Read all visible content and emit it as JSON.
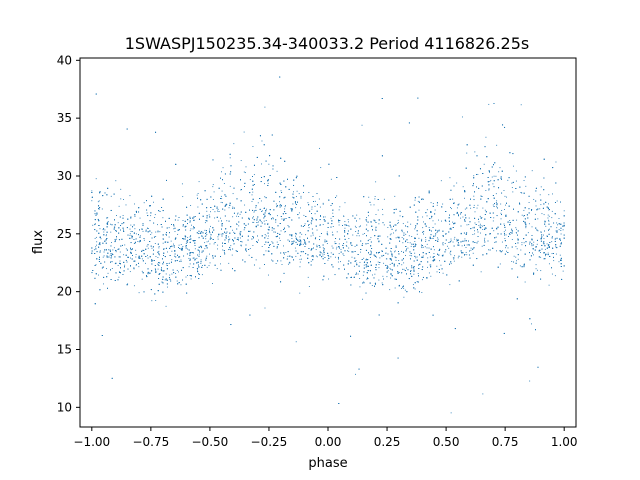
{
  "chart_data": {
    "type": "scatter",
    "title": "1SWASPJ150235.34-340033.2 Period 4116826.25s",
    "xlabel": "phase",
    "ylabel": "flux",
    "xlim": [
      -1.05,
      1.05
    ],
    "ylim": [
      8.3,
      40.2
    ],
    "xticks": [
      -1.0,
      -0.75,
      -0.5,
      -0.25,
      0.0,
      0.25,
      0.5,
      0.75,
      1.0
    ],
    "xtick_labels": [
      "−1.00",
      "−0.75",
      "−0.50",
      "−0.25",
      "0.00",
      "0.25",
      "0.50",
      "0.75",
      "1.00"
    ],
    "yticks": [
      10,
      15,
      20,
      25,
      30,
      35,
      40
    ],
    "ytick_labels": [
      "10",
      "15",
      "20",
      "25",
      "30",
      "35",
      "40"
    ],
    "grid": false,
    "marker_color": "#1f77b4",
    "series": [
      {
        "phase": [
          -1.0,
          -0.95,
          -0.9,
          -0.85,
          -0.8,
          -0.75,
          -0.7,
          -0.65,
          -0.6,
          -0.55,
          -0.5,
          -0.45,
          -0.4,
          -0.35,
          -0.3,
          -0.25,
          -0.2,
          -0.15,
          -0.1,
          -0.05,
          0.0,
          0.05,
          0.1,
          0.15,
          0.2,
          0.25,
          0.3,
          0.35,
          0.4,
          0.45,
          0.5,
          0.55,
          0.6,
          0.65,
          0.7,
          0.75,
          0.8,
          0.85,
          0.9,
          0.95,
          1.0
        ],
        "flux_center": [
          25.0,
          24.5,
          24.0,
          24.2,
          24.5,
          23.5,
          23.0,
          23.5,
          24.0,
          24.0,
          24.5,
          25.0,
          25.5,
          26.0,
          26.5,
          26.0,
          25.5,
          25.0,
          24.5,
          24.5,
          24.5,
          24.5,
          24.2,
          24.0,
          23.5,
          23.0,
          23.0,
          23.5,
          24.0,
          24.0,
          24.5,
          25.0,
          25.5,
          26.0,
          26.5,
          26.0,
          25.5,
          25.0,
          24.5,
          24.5,
          25.0
        ],
        "flux_low": [
          21.0,
          20.5,
          20.0,
          20.0,
          20.5,
          19.5,
          19.0,
          19.5,
          20.0,
          20.5,
          21.0,
          21.5,
          22.0,
          22.0,
          22.0,
          22.0,
          21.5,
          21.5,
          21.0,
          21.0,
          21.0,
          21.0,
          20.5,
          20.0,
          20.0,
          19.5,
          19.0,
          19.5,
          20.0,
          20.5,
          21.0,
          21.5,
          22.0,
          22.0,
          22.0,
          22.0,
          21.5,
          21.5,
          21.0,
          21.0,
          21.0
        ],
        "flux_high": [
          30.0,
          29.0,
          28.5,
          28.5,
          29.0,
          28.0,
          28.0,
          28.5,
          29.0,
          29.0,
          30.0,
          31.0,
          32.5,
          33.5,
          34.0,
          33.0,
          32.0,
          31.0,
          30.0,
          29.5,
          29.5,
          29.5,
          29.0,
          28.5,
          28.5,
          28.0,
          28.0,
          28.5,
          29.0,
          29.5,
          30.0,
          31.0,
          32.5,
          33.5,
          34.0,
          33.0,
          32.0,
          31.0,
          30.0,
          29.5,
          30.0
        ],
        "flux_extreme_low": 9.5,
        "flux_extreme_high": 38.7
      }
    ]
  }
}
